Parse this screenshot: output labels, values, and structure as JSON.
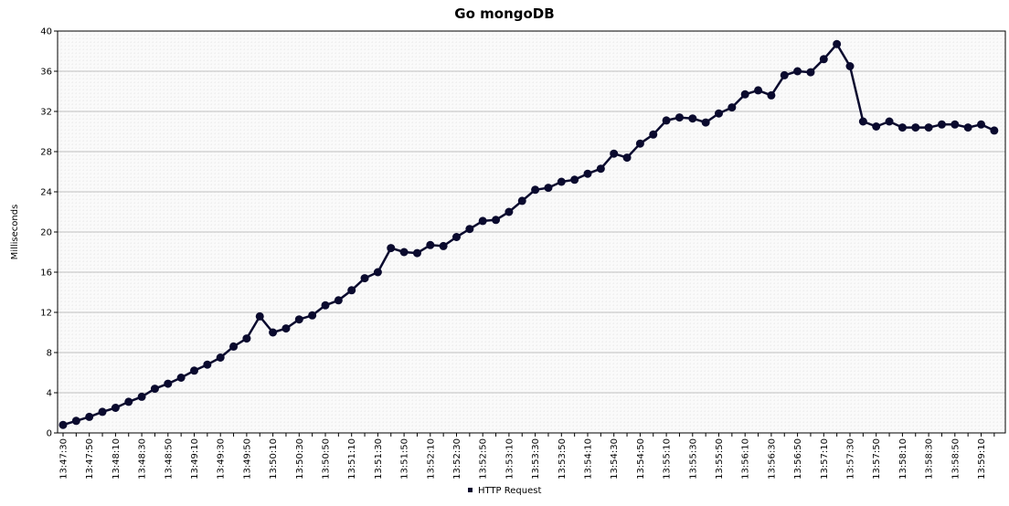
{
  "chart_data": {
    "type": "line",
    "title": "Go mongoDB",
    "ylabel": "Milliseconds",
    "xlabel": "",
    "ylim": [
      0,
      40
    ],
    "yticks": [
      0,
      4,
      8,
      12,
      16,
      20,
      24,
      28,
      32,
      36,
      40
    ],
    "grid": true,
    "legend_position": "bottom-center",
    "colors": {
      "series": "#0a0a2e",
      "plot_bg": "#fafafa",
      "grid": "#c0c0c0"
    },
    "x_tick_labels": [
      "13:47:30",
      "13:47:50",
      "13:48:10",
      "13:48:30",
      "13:48:50",
      "13:49:10",
      "13:49:30",
      "13:49:50",
      "13:50:10",
      "13:50:30",
      "13:50:50",
      "13:51:10",
      "13:51:30",
      "13:51:50",
      "13:52:10",
      "13:52:30",
      "13:52:50",
      "13:53:10",
      "13:53:30",
      "13:53:50",
      "13:54:10",
      "13:54:30",
      "13:54:50",
      "13:55:10",
      "13:55:30",
      "13:55:50",
      "13:56:10",
      "13:56:30",
      "13:56:50",
      "13:57:10",
      "13:57:30",
      "13:57:50",
      "13:58:10",
      "13:58:30",
      "13:58:50",
      "13:59:10"
    ],
    "series": [
      {
        "name": "HTTP Request",
        "values": [
          0.8,
          1.2,
          1.6,
          2.1,
          2.5,
          3.1,
          3.6,
          4.4,
          4.9,
          5.5,
          6.2,
          6.8,
          7.5,
          8.6,
          9.4,
          11.6,
          10.0,
          10.4,
          11.3,
          11.7,
          12.7,
          13.2,
          14.2,
          15.4,
          16.0,
          18.4,
          18.0,
          17.9,
          18.7,
          18.6,
          19.5,
          20.3,
          21.1,
          21.2,
          22.0,
          23.1,
          24.2,
          24.4,
          25.0,
          25.2,
          25.8,
          26.3,
          27.8,
          27.4,
          28.8,
          29.7,
          31.1,
          31.4,
          31.3,
          30.9,
          31.8,
          32.4,
          33.7,
          34.1,
          33.6,
          35.6,
          36.0,
          35.9,
          37.2,
          38.7,
          36.5,
          31.0,
          30.5,
          31.0,
          30.4,
          30.4,
          30.4,
          30.7,
          30.7,
          30.4,
          30.7,
          30.1
        ]
      }
    ]
  }
}
